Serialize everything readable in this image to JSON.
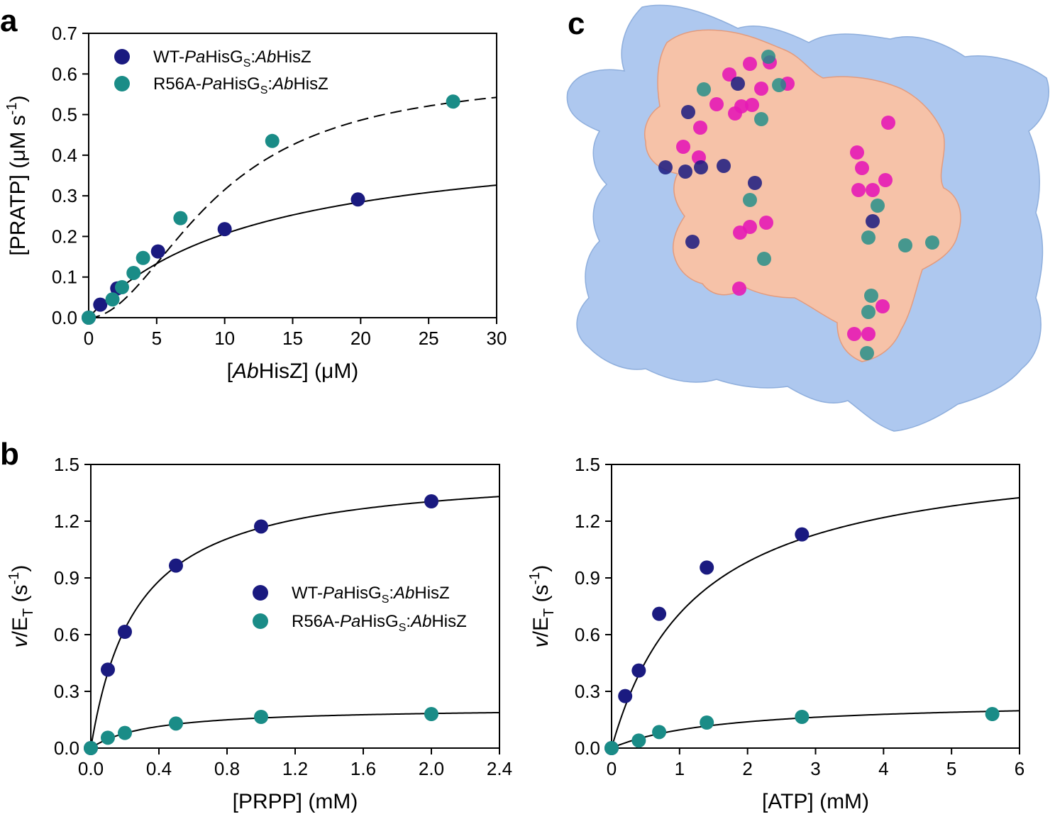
{
  "colors": {
    "wt": "#1a1a80",
    "r56a": "#1a8c87",
    "protein_bg": "#aec8ef",
    "protein_fg": "#f6c2a8",
    "magenta": "#e519b5"
  },
  "panels": {
    "a": "a",
    "b": "b",
    "c": "c"
  },
  "chart_data": [
    {
      "id": "a",
      "type": "scatter",
      "xlabel_parts": [
        "[",
        "Ab",
        "HisZ] (μM)"
      ],
      "ylabel_main": "[PRATP] (μM s",
      "ylabel_sup": "-1",
      "ylabel_end": ")",
      "xlim": [
        0,
        30
      ],
      "ylim": [
        0,
        0.7
      ],
      "xticks": [
        0,
        5,
        10,
        15,
        20,
        25,
        30
      ],
      "xtick_labels": [
        "0",
        "5",
        "10",
        "15",
        "20",
        "25",
        "30"
      ],
      "yticks": [
        0,
        0.1,
        0.2,
        0.3,
        0.4,
        0.5,
        0.6,
        0.7
      ],
      "ytick_labels": [
        "0.0",
        "0.1",
        "0.2",
        "0.3",
        "0.4",
        "0.5",
        "0.6",
        "0.7"
      ],
      "legend": {
        "position": "top-left"
      },
      "series": [
        {
          "key": "wt",
          "label": [
            "WT-",
            "Pa",
            "HisG",
            "S",
            ":",
            "Ab",
            "HisZ"
          ],
          "x": [
            0,
            0.85,
            2.1,
            5.1,
            10.0,
            19.8
          ],
          "y": [
            0,
            0.032,
            0.072,
            0.163,
            0.218,
            0.291
          ],
          "fit": {
            "model": "mm",
            "vmax": 0.46,
            "km": 12.3,
            "style": "solid"
          }
        },
        {
          "key": "r56a",
          "label": [
            "R56A-",
            "Pa",
            "HisG",
            "S",
            ":",
            "Ab",
            "HisZ"
          ],
          "x": [
            0,
            1.75,
            2.45,
            3.3,
            4.0,
            6.75,
            13.5,
            26.8
          ],
          "y": [
            0,
            0.045,
            0.075,
            0.11,
            0.147,
            0.245,
            0.435,
            0.532
          ],
          "fit": {
            "model": "hill",
            "vmax": 0.6,
            "k": 9.5,
            "n": 1.95,
            "style": "dashed"
          }
        }
      ]
    },
    {
      "id": "b1",
      "type": "scatter",
      "xlabel_parts": [
        "[PRPP] (mM)"
      ],
      "ylabel_main": "/E",
      "ylabel_v": "v",
      "ylabel_sub": "T",
      "ylabel_sup": "-1",
      "ylabel_end": " (s",
      "ylabel_close": ")",
      "xlim": [
        0,
        2.4
      ],
      "ylim": [
        0,
        1.5
      ],
      "xticks": [
        0,
        0.4,
        0.8,
        1.2,
        1.6,
        2.0,
        2.4
      ],
      "xtick_labels": [
        "0.0",
        "0.4",
        "0.8",
        "1.2",
        "1.6",
        "2.0",
        "2.4"
      ],
      "yticks": [
        0,
        0.3,
        0.6,
        0.9,
        1.2,
        1.5
      ],
      "ytick_labels": [
        "0.0",
        "0.3",
        "0.6",
        "0.9",
        "1.2",
        "1.5"
      ],
      "legend": {
        "position": "center-right"
      },
      "series": [
        {
          "key": "wt",
          "label": [
            "WT-",
            "Pa",
            "HisG",
            "S",
            ":",
            "Ab",
            "HisZ"
          ],
          "x": [
            0,
            0.1,
            0.2,
            0.5,
            1.0,
            2.0
          ],
          "y": [
            0,
            0.415,
            0.615,
            0.965,
            1.172,
            1.305
          ],
          "fit": {
            "model": "mm",
            "vmax": 1.48,
            "km": 0.27,
            "style": "solid"
          }
        },
        {
          "key": "r56a",
          "label": [
            "R56A-",
            "Pa",
            "HisG",
            "S",
            ":",
            "Ab",
            "HisZ"
          ],
          "x": [
            0,
            0.1,
            0.2,
            0.5,
            1.0,
            2.0
          ],
          "y": [
            0,
            0.055,
            0.08,
            0.13,
            0.165,
            0.18
          ],
          "fit": {
            "model": "mm",
            "vmax": 0.215,
            "km": 0.35,
            "style": "solid"
          }
        }
      ]
    },
    {
      "id": "b2",
      "type": "scatter",
      "xlabel_parts": [
        "[ATP] (mM)"
      ],
      "ylabel_main": "/E",
      "ylabel_v": "v",
      "ylabel_sub": "T",
      "ylabel_sup": "-1",
      "ylabel_end": " (s",
      "ylabel_close": ")",
      "xlim": [
        0,
        6
      ],
      "ylim": [
        0,
        1.5
      ],
      "xticks": [
        0,
        1,
        2,
        3,
        4,
        5,
        6
      ],
      "xtick_labels": [
        "0",
        "1",
        "2",
        "3",
        "4",
        "5",
        "6"
      ],
      "yticks": [
        0,
        0.3,
        0.6,
        0.9,
        1.2,
        1.5
      ],
      "ytick_labels": [
        "0.0",
        "0.3",
        "0.6",
        "0.9",
        "1.2",
        "1.5"
      ],
      "legend": {
        "position": "none"
      },
      "series": [
        {
          "key": "wt",
          "label": [],
          "x": [
            0,
            0.2,
            0.4,
            0.7,
            1.4,
            2.8
          ],
          "y": [
            0,
            0.275,
            0.41,
            0.71,
            0.955,
            1.13
          ],
          "fit": {
            "model": "mm",
            "vmax": 1.6,
            "km": 1.25,
            "style": "solid"
          }
        },
        {
          "key": "r56a",
          "label": [],
          "x": [
            0,
            0.4,
            0.7,
            1.4,
            2.8,
            5.6
          ],
          "y": [
            0,
            0.04,
            0.085,
            0.135,
            0.165,
            0.18
          ],
          "fit": {
            "model": "mm",
            "vmax": 0.25,
            "km": 1.6,
            "style": "solid"
          }
        }
      ]
    }
  ]
}
